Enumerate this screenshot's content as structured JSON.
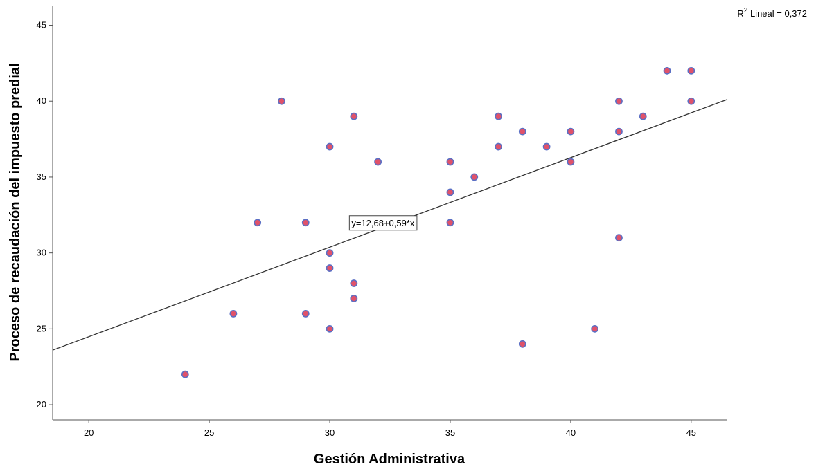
{
  "chart_data": {
    "type": "scatter",
    "title": "",
    "xlabel": "Gestión Administrativa",
    "ylabel": "Proceso de recaudación del impuesto predial",
    "xlim": [
      18.5,
      46.5
    ],
    "ylim": [
      19,
      46.3
    ],
    "x_ticks": [
      20,
      25,
      30,
      35,
      40,
      45
    ],
    "y_ticks": [
      20,
      25,
      30,
      35,
      40,
      45
    ],
    "grid": false,
    "points": [
      {
        "x": 24,
        "y": 22
      },
      {
        "x": 26,
        "y": 26
      },
      {
        "x": 27,
        "y": 32
      },
      {
        "x": 28,
        "y": 40
      },
      {
        "x": 29,
        "y": 32
      },
      {
        "x": 29,
        "y": 26
      },
      {
        "x": 30,
        "y": 37
      },
      {
        "x": 30,
        "y": 30
      },
      {
        "x": 30,
        "y": 29
      },
      {
        "x": 30,
        "y": 25
      },
      {
        "x": 31,
        "y": 39
      },
      {
        "x": 31,
        "y": 28
      },
      {
        "x": 31,
        "y": 27
      },
      {
        "x": 32,
        "y": 36
      },
      {
        "x": 35,
        "y": 36
      },
      {
        "x": 35,
        "y": 34
      },
      {
        "x": 35,
        "y": 32
      },
      {
        "x": 36,
        "y": 35
      },
      {
        "x": 37,
        "y": 39
      },
      {
        "x": 37,
        "y": 37
      },
      {
        "x": 38,
        "y": 38
      },
      {
        "x": 38,
        "y": 24
      },
      {
        "x": 39,
        "y": 37
      },
      {
        "x": 40,
        "y": 38
      },
      {
        "x": 40,
        "y": 36
      },
      {
        "x": 41,
        "y": 25
      },
      {
        "x": 42,
        "y": 40
      },
      {
        "x": 42,
        "y": 38
      },
      {
        "x": 42,
        "y": 31
      },
      {
        "x": 43,
        "y": 39
      },
      {
        "x": 44,
        "y": 42
      },
      {
        "x": 45,
        "y": 42
      },
      {
        "x": 45,
        "y": 40
      }
    ],
    "fit_line": {
      "intercept": 12.68,
      "slope": 0.59
    },
    "equation_label": "y=12,68+0,59*x",
    "r2_label_prefix": "R",
    "r2_label_sup": "2",
    "r2_label_suffix": " Lineal = 0,372",
    "colors": {
      "point_fill": "#e0526a",
      "point_stroke": "#5b6fc4",
      "line": "#333333",
      "axis": "#555555"
    }
  }
}
